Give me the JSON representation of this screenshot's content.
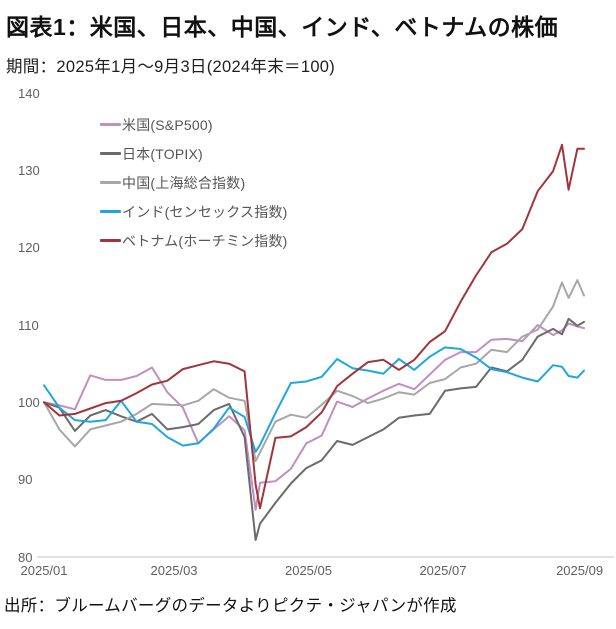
{
  "page": {
    "title": "図表1：米国、日本、中国、インド、ベトナムの株価",
    "subtitle": "期間：2025年1月～9月3日(2024年末＝100)",
    "source": "出所：ブルームバーグのデータよりピクテ・ジャパンが作成"
  },
  "chart_data": {
    "type": "line",
    "title": "図表1：米国、日本、中国、インド、ベトナムの株価",
    "subtitle": "期間：2025年1月～9月3日(2024年末＝100)",
    "index_base_note": "2024年末＝100",
    "x": [
      "1/1",
      "1/8",
      "1/15",
      "1/22",
      "1/29",
      "2/5",
      "2/12",
      "2/19",
      "2/26",
      "3/5",
      "3/12",
      "3/19",
      "3/26",
      "4/2",
      "4/7",
      "4/9",
      "4/16",
      "4/23",
      "4/30",
      "5/7",
      "5/14",
      "5/21",
      "5/28",
      "6/4",
      "6/11",
      "6/18",
      "6/25",
      "7/2",
      "7/9",
      "7/16",
      "7/23",
      "7/30",
      "8/6",
      "8/13",
      "8/20",
      "8/24",
      "8/27",
      "8/31",
      "9/3"
    ],
    "series": [
      {
        "name": "米国(S&P500)",
        "color": "#c18fc0",
        "values": [
          100.0,
          99.6,
          99.1,
          103.5,
          102.9,
          102.9,
          103.4,
          104.5,
          101.3,
          99.3,
          94.7,
          96.5,
          98.2,
          96.4,
          86.1,
          89.6,
          89.8,
          91.4,
          94.7,
          95.7,
          100.1,
          99.4,
          100.5,
          101.5,
          102.4,
          101.7,
          103.6,
          105.5,
          106.5,
          106.5,
          108.1,
          108.2,
          107.9,
          110.0,
          108.7,
          109.3,
          110.2,
          109.8,
          109.6
        ]
      },
      {
        "name": "日本(TOPIX)",
        "color": "#6b6b6b",
        "values": [
          100.0,
          99.3,
          96.3,
          98.3,
          99.0,
          98.2,
          97.5,
          98.5,
          96.5,
          96.8,
          97.2,
          99.0,
          99.8,
          95.5,
          82.2,
          84.3,
          87.0,
          89.5,
          91.5,
          92.5,
          95.0,
          94.5,
          95.5,
          96.5,
          98.0,
          98.3,
          98.5,
          101.5,
          101.8,
          102.0,
          104.5,
          104.0,
          105.5,
          108.5,
          109.5,
          108.8,
          110.8,
          109.9,
          110.4
        ]
      },
      {
        "name": "中国(上海総合指数)",
        "color": "#a7a7a7",
        "values": [
          100.0,
          96.5,
          94.3,
          96.5,
          97.0,
          97.5,
          98.5,
          99.8,
          99.7,
          99.6,
          100.2,
          101.7,
          100.6,
          100.2,
          92.4,
          93.5,
          97.5,
          98.4,
          98.0,
          99.7,
          101.5,
          100.8,
          99.9,
          100.5,
          101.3,
          101.0,
          102.5,
          103.0,
          104.5,
          105.0,
          106.8,
          106.5,
          108.5,
          109.4,
          112.4,
          115.5,
          113.5,
          115.8,
          113.8
        ]
      },
      {
        "name": "インド(センセックス指数)",
        "color": "#20a6e0",
        "values": [
          102.2,
          99.3,
          97.7,
          97.5,
          97.7,
          100.2,
          97.5,
          97.2,
          95.5,
          94.4,
          94.7,
          96.6,
          99.3,
          98.1,
          93.6,
          94.5,
          98.6,
          102.5,
          102.7,
          103.3,
          105.6,
          104.4,
          104.1,
          103.7,
          105.6,
          104.2,
          105.9,
          107.1,
          106.9,
          105.8,
          104.3,
          103.9,
          103.2,
          102.7,
          104.8,
          104.6,
          103.4,
          103.2,
          104.1
        ]
      },
      {
        "name": "ベトナム(ホーチミン指数)",
        "color": "#a2343a",
        "values": [
          100.0,
          98.3,
          98.5,
          99.2,
          99.9,
          100.2,
          101.2,
          102.3,
          102.8,
          104.3,
          104.8,
          105.3,
          105.0,
          104.0,
          89.4,
          86.3,
          95.4,
          95.6,
          96.8,
          98.7,
          102.1,
          103.7,
          105.2,
          105.5,
          104.2,
          105.5,
          107.8,
          109.2,
          113.0,
          116.4,
          119.4,
          120.5,
          122.4,
          127.3,
          129.9,
          133.3,
          127.5,
          132.8,
          132.8
        ]
      }
    ],
    "ylim": [
      80,
      140
    ],
    "yticks": [
      140,
      130,
      120,
      110,
      100,
      90,
      80
    ],
    "xticks": [
      "2025/01",
      "2025/03",
      "2025/05",
      "2025/07",
      "2025/09"
    ],
    "grid": false,
    "legend_position": "upper-left-inside",
    "baseline_color": "#cfcfcf"
  }
}
